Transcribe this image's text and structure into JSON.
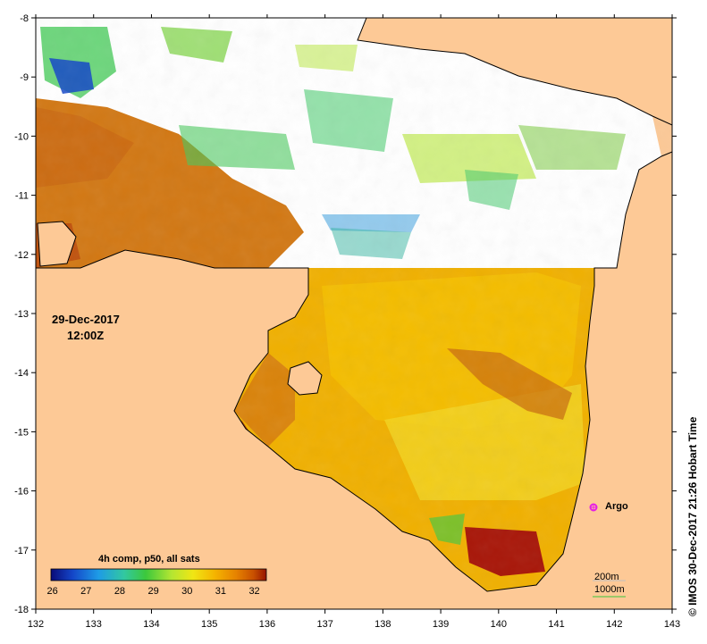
{
  "map": {
    "date": "29-Dec-2017",
    "time": "12:00Z",
    "x_ticks": [
      "132",
      "133",
      "134",
      "135",
      "136",
      "137",
      "138",
      "139",
      "140",
      "141",
      "142",
      "143"
    ],
    "y_ticks": [
      "-8",
      "-9",
      "-10",
      "-11",
      "-12",
      "-13",
      "-14",
      "-15",
      "-16",
      "-17",
      "-18"
    ],
    "copyright": "IMOS 30-Dec-2017 21:26 Hobart Time",
    "copyright_symbol": "©",
    "argo_label": "Argo",
    "contour_200": "200m",
    "contour_1000": "1000m",
    "land_color": "#fdc996",
    "nodata_color": "#ffffff"
  },
  "colorbar": {
    "title": "4h comp, p50, all sats",
    "ticks": [
      "26",
      "27",
      "28",
      "29",
      "30",
      "31",
      "32"
    ],
    "colors": [
      "#0a0a78",
      "#1446c8",
      "#1e9be6",
      "#32c8a0",
      "#3cc83c",
      "#b4e632",
      "#f0e614",
      "#f5b400",
      "#e68200",
      "#c85000",
      "#961400"
    ]
  }
}
